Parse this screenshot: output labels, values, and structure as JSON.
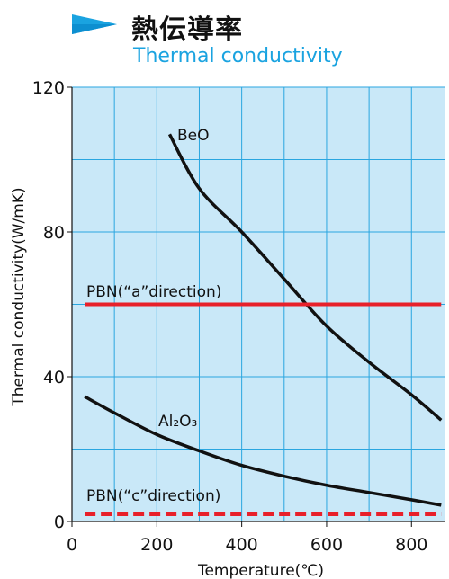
{
  "header": {
    "title_jp": "熱伝導率",
    "title_en": "Thermal conductivity"
  },
  "colors": {
    "accent": "#1aa3e0",
    "plot_background": "#c9e8f8",
    "grid": "#2aa6e0",
    "curve": "#111111",
    "pbn_line": "#e8202a"
  },
  "chart_data": {
    "type": "line",
    "xlabel": "Temperature(℃)",
    "ylabel": "Thermal conductivity(W/mK)",
    "xlim": [
      0,
      880
    ],
    "ylim": [
      0,
      120
    ],
    "xticks": [
      0,
      200,
      400,
      600,
      800
    ],
    "yticks": [
      0,
      40,
      80,
      120
    ],
    "grid": true,
    "series": [
      {
        "name": "BeO",
        "style": "solid",
        "x": [
          230,
          300,
          400,
          500,
          600,
          700,
          800,
          870
        ],
        "y": [
          107,
          92,
          80,
          67,
          54,
          44,
          35,
          28
        ]
      },
      {
        "name": "PBN(“a”direction)",
        "style": "solid",
        "x": [
          30,
          870
        ],
        "y": [
          60,
          60
        ]
      },
      {
        "name": "Al₂O₃",
        "style": "solid",
        "x": [
          30,
          100,
          200,
          300,
          400,
          500,
          600,
          700,
          800,
          870
        ],
        "y": [
          34.5,
          30,
          24,
          19.5,
          15.5,
          12.5,
          10,
          8,
          6,
          4.5
        ]
      },
      {
        "name": "PBN(“c”direction)",
        "style": "dashed",
        "x": [
          30,
          870
        ],
        "y": [
          2,
          2
        ]
      }
    ]
  }
}
